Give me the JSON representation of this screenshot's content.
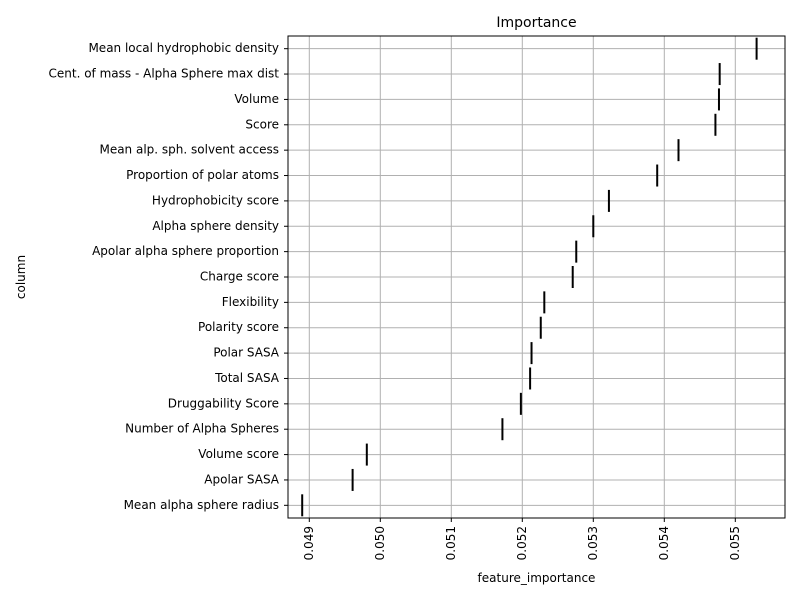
{
  "chart_data": {
    "type": "scatter",
    "marker": "vertical-line",
    "title": "Importance",
    "xlabel": "feature_importance",
    "ylabel": "column",
    "xlim": [
      0.0487,
      0.0557
    ],
    "xticks": [
      "0.049",
      "0.050",
      "0.051",
      "0.052",
      "0.053",
      "0.054",
      "0.055"
    ],
    "grid": true,
    "colors": {
      "marker": "#000000",
      "grid": "#b0b0b0",
      "frame": "#000000"
    },
    "categories": [
      "Mean local hydrophobic density",
      "Cent. of mass - Alpha Sphere max dist",
      "Volume",
      "Score",
      "Mean alp. sph. solvent access",
      "Proportion of polar atoms",
      "Hydrophobicity score",
      "Alpha sphere density",
      "Apolar alpha sphere proportion",
      "Charge score",
      "Flexibility",
      "Polarity score",
      "Polar SASA",
      "Total SASA",
      "Druggability Score",
      "Number of Alpha Spheres",
      "Volume score",
      "Apolar SASA",
      "Mean alpha sphere radius"
    ],
    "values": [
      0.0553,
      0.05478,
      0.05477,
      0.05472,
      0.0542,
      0.0539,
      0.05322,
      0.053,
      0.05276,
      0.05271,
      0.05231,
      0.05226,
      0.05213,
      0.05211,
      0.05198,
      0.05172,
      0.04981,
      0.04961,
      0.0489
    ]
  }
}
